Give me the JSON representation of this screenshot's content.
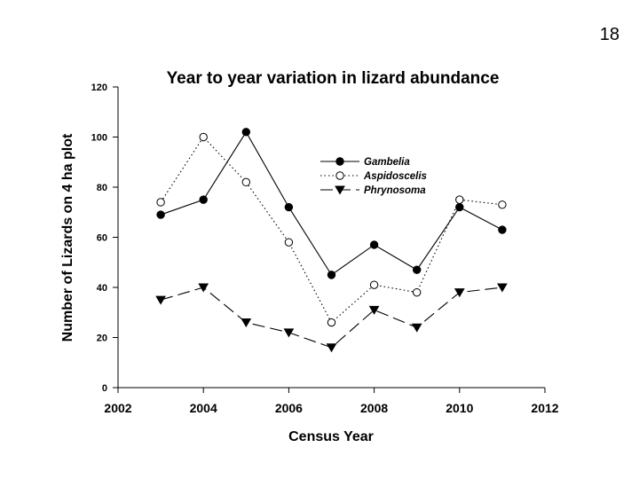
{
  "slide": {
    "number": "18"
  },
  "chart_data": {
    "type": "line",
    "title": "Year to year variation in lizard abundance",
    "xlabel": "Census Year",
    "ylabel": "Number of Lizards on 4 ha plot",
    "xlim": [
      2002,
      2012
    ],
    "ylim": [
      0,
      120
    ],
    "xticks": [
      2002,
      2004,
      2006,
      2008,
      2010,
      2012
    ],
    "yticks": [
      0,
      20,
      40,
      60,
      80,
      100,
      120
    ],
    "legend_position": "upper-right",
    "series": [
      {
        "name": "Gambelia",
        "marker": "filled-circle",
        "line": "solid",
        "x": [
          2003,
          2004,
          2005,
          2006,
          2007,
          2008,
          2009,
          2010,
          2011
        ],
        "values": [
          69,
          75,
          102,
          72,
          45,
          57,
          47,
          72,
          63
        ]
      },
      {
        "name": "Aspidoscelis",
        "marker": "open-circle",
        "line": "dotted",
        "x": [
          2003,
          2004,
          2005,
          2006,
          2007,
          2008,
          2009,
          2010,
          2011
        ],
        "values": [
          74,
          100,
          82,
          58,
          26,
          41,
          38,
          75,
          73
        ]
      },
      {
        "name": "Phrynosoma",
        "marker": "filled-triangle-down",
        "line": "dashed",
        "x": [
          2003,
          2004,
          2005,
          2006,
          2007,
          2008,
          2009,
          2010,
          2011
        ],
        "values": [
          35,
          40,
          26,
          22,
          16,
          31,
          24,
          38,
          40
        ]
      }
    ]
  }
}
